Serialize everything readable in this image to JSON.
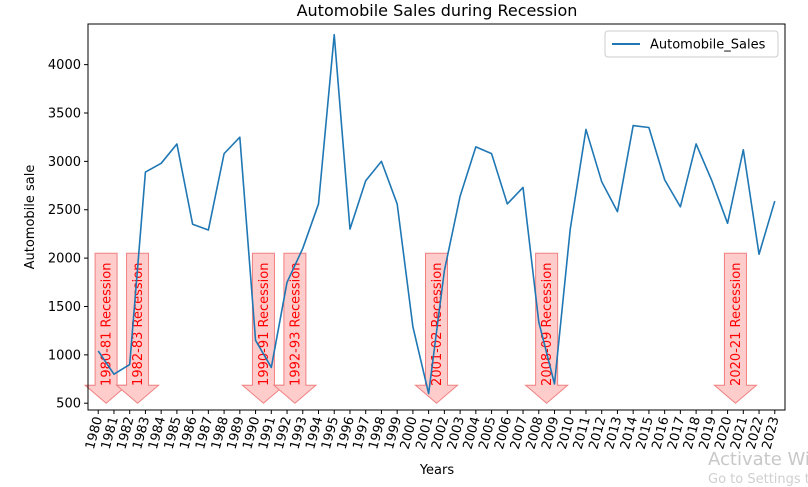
{
  "chart_data": {
    "type": "line",
    "title": "Automobile Sales during Recession",
    "xlabel": "Years",
    "ylabel": "Automobile sale",
    "ylim": [
      430,
      4420
    ],
    "yticks": [
      500,
      1000,
      1500,
      2000,
      2500,
      3000,
      3500,
      4000
    ],
    "legend_position": "top-right",
    "grid": false,
    "series": [
      {
        "name": "Automobile_Sales",
        "color": "#1f77b4",
        "x": [
          1980,
          1981,
          1982,
          1983,
          1984,
          1985,
          1986,
          1987,
          1988,
          1989,
          1990,
          1991,
          1992,
          1993,
          1994,
          1995,
          1996,
          1997,
          1998,
          1999,
          2000,
          2001,
          2002,
          2003,
          2004,
          2005,
          2006,
          2007,
          2008,
          2009,
          2010,
          2011,
          2012,
          2013,
          2014,
          2015,
          2016,
          2017,
          2018,
          2019,
          2020,
          2021,
          2022,
          2023
        ],
        "values": [
          1040,
          800,
          900,
          2890,
          2980,
          3180,
          2350,
          2290,
          3080,
          3250,
          1150,
          870,
          1750,
          2100,
          2560,
          4310,
          2300,
          2800,
          3000,
          2560,
          1290,
          600,
          1870,
          2640,
          3150,
          3080,
          2560,
          2730,
          1340,
          700,
          2300,
          3330,
          2790,
          2480,
          3370,
          3350,
          2810,
          2530,
          3180,
          2800,
          2360,
          3120,
          2040,
          2590
        ]
      }
    ],
    "annotations": [
      {
        "text": "1980-81 Recession",
        "x": 1980.5
      },
      {
        "text": "1982-83 Recession",
        "x": 1982.5
      },
      {
        "text": "1990-91 Recession",
        "x": 1990.5
      },
      {
        "text": "1992-93 Recession",
        "x": 1992.5
      },
      {
        "text": "2001-02 Recession",
        "x": 2001.5
      },
      {
        "text": "2008-09 Recession",
        "x": 2008.5
      },
      {
        "text": "2020-21 Recession",
        "x": 2020.5
      }
    ],
    "annotation_style": {
      "fill": "#ffcccc",
      "stroke": "#f08080",
      "text_color": "#ff0000"
    },
    "annotation_value_range": [
      500,
      2050
    ]
  },
  "watermark": {
    "line1": "Activate Wi",
    "line2": "Go to Settings t"
  }
}
